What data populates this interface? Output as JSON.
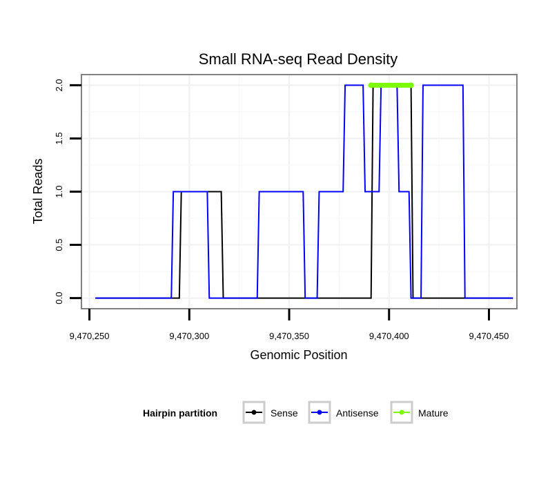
{
  "chart_data": {
    "type": "line",
    "title": "Small RNA-seq Read Density",
    "xlabel": "Genomic Position",
    "ylabel": "Total Reads",
    "xlim": [
      9470246,
      9470464
    ],
    "ylim": [
      -0.1,
      2.1
    ],
    "x_ticks": [
      9470250,
      9470300,
      9470350,
      9470400,
      9470450
    ],
    "x_tick_labels": [
      "9,470,250",
      "9,470,300",
      "9,470,350",
      "9,470,400",
      "9,470,450"
    ],
    "y_ticks": [
      0,
      0.5,
      1,
      1.5,
      2
    ],
    "y_tick_labels": [
      "0.0",
      "0.5",
      "1.0",
      "1.5",
      "2.0"
    ],
    "grid": true,
    "legend": {
      "title": "Hairpin partition",
      "position": "bottom",
      "entries": [
        {
          "name": "Sense",
          "color": "#000000"
        },
        {
          "name": "Antisense",
          "color": "#0000ff"
        },
        {
          "name": "Mature",
          "color": "#7cfc00"
        }
      ]
    },
    "series": [
      {
        "name": "Sense",
        "color": "#000000",
        "points": [
          [
            9470253,
            0
          ],
          [
            9470295,
            0
          ],
          [
            9470296,
            1
          ],
          [
            9470316,
            1
          ],
          [
            9470317,
            0
          ],
          [
            9470391,
            0
          ],
          [
            9470392,
            2
          ],
          [
            9470411,
            2
          ],
          [
            9470412,
            0
          ],
          [
            9470462,
            0
          ]
        ]
      },
      {
        "name": "Antisense",
        "color": "#0000ff",
        "points": [
          [
            9470253,
            0
          ],
          [
            9470291,
            0
          ],
          [
            9470292,
            1
          ],
          [
            9470309,
            1
          ],
          [
            9470310,
            0
          ],
          [
            9470334,
            0
          ],
          [
            9470335,
            1
          ],
          [
            9470357,
            1
          ],
          [
            9470358,
            0
          ],
          [
            9470364,
            0
          ],
          [
            9470365,
            1
          ],
          [
            9470377,
            1
          ],
          [
            9470378,
            2
          ],
          [
            9470387,
            2
          ],
          [
            9470388,
            1
          ],
          [
            9470395,
            1
          ],
          [
            9470396,
            2
          ],
          [
            9470404,
            2
          ],
          [
            9470405,
            1
          ],
          [
            9470410,
            1
          ],
          [
            9470411,
            0
          ],
          [
            9470416,
            0
          ],
          [
            9470417,
            2
          ],
          [
            9470437,
            2
          ],
          [
            9470438,
            0
          ],
          [
            9470462,
            0
          ]
        ]
      },
      {
        "name": "Mature",
        "color": "#7cfc00",
        "points": [
          [
            9470391,
            2
          ],
          [
            9470411,
            2
          ]
        ]
      }
    ]
  }
}
